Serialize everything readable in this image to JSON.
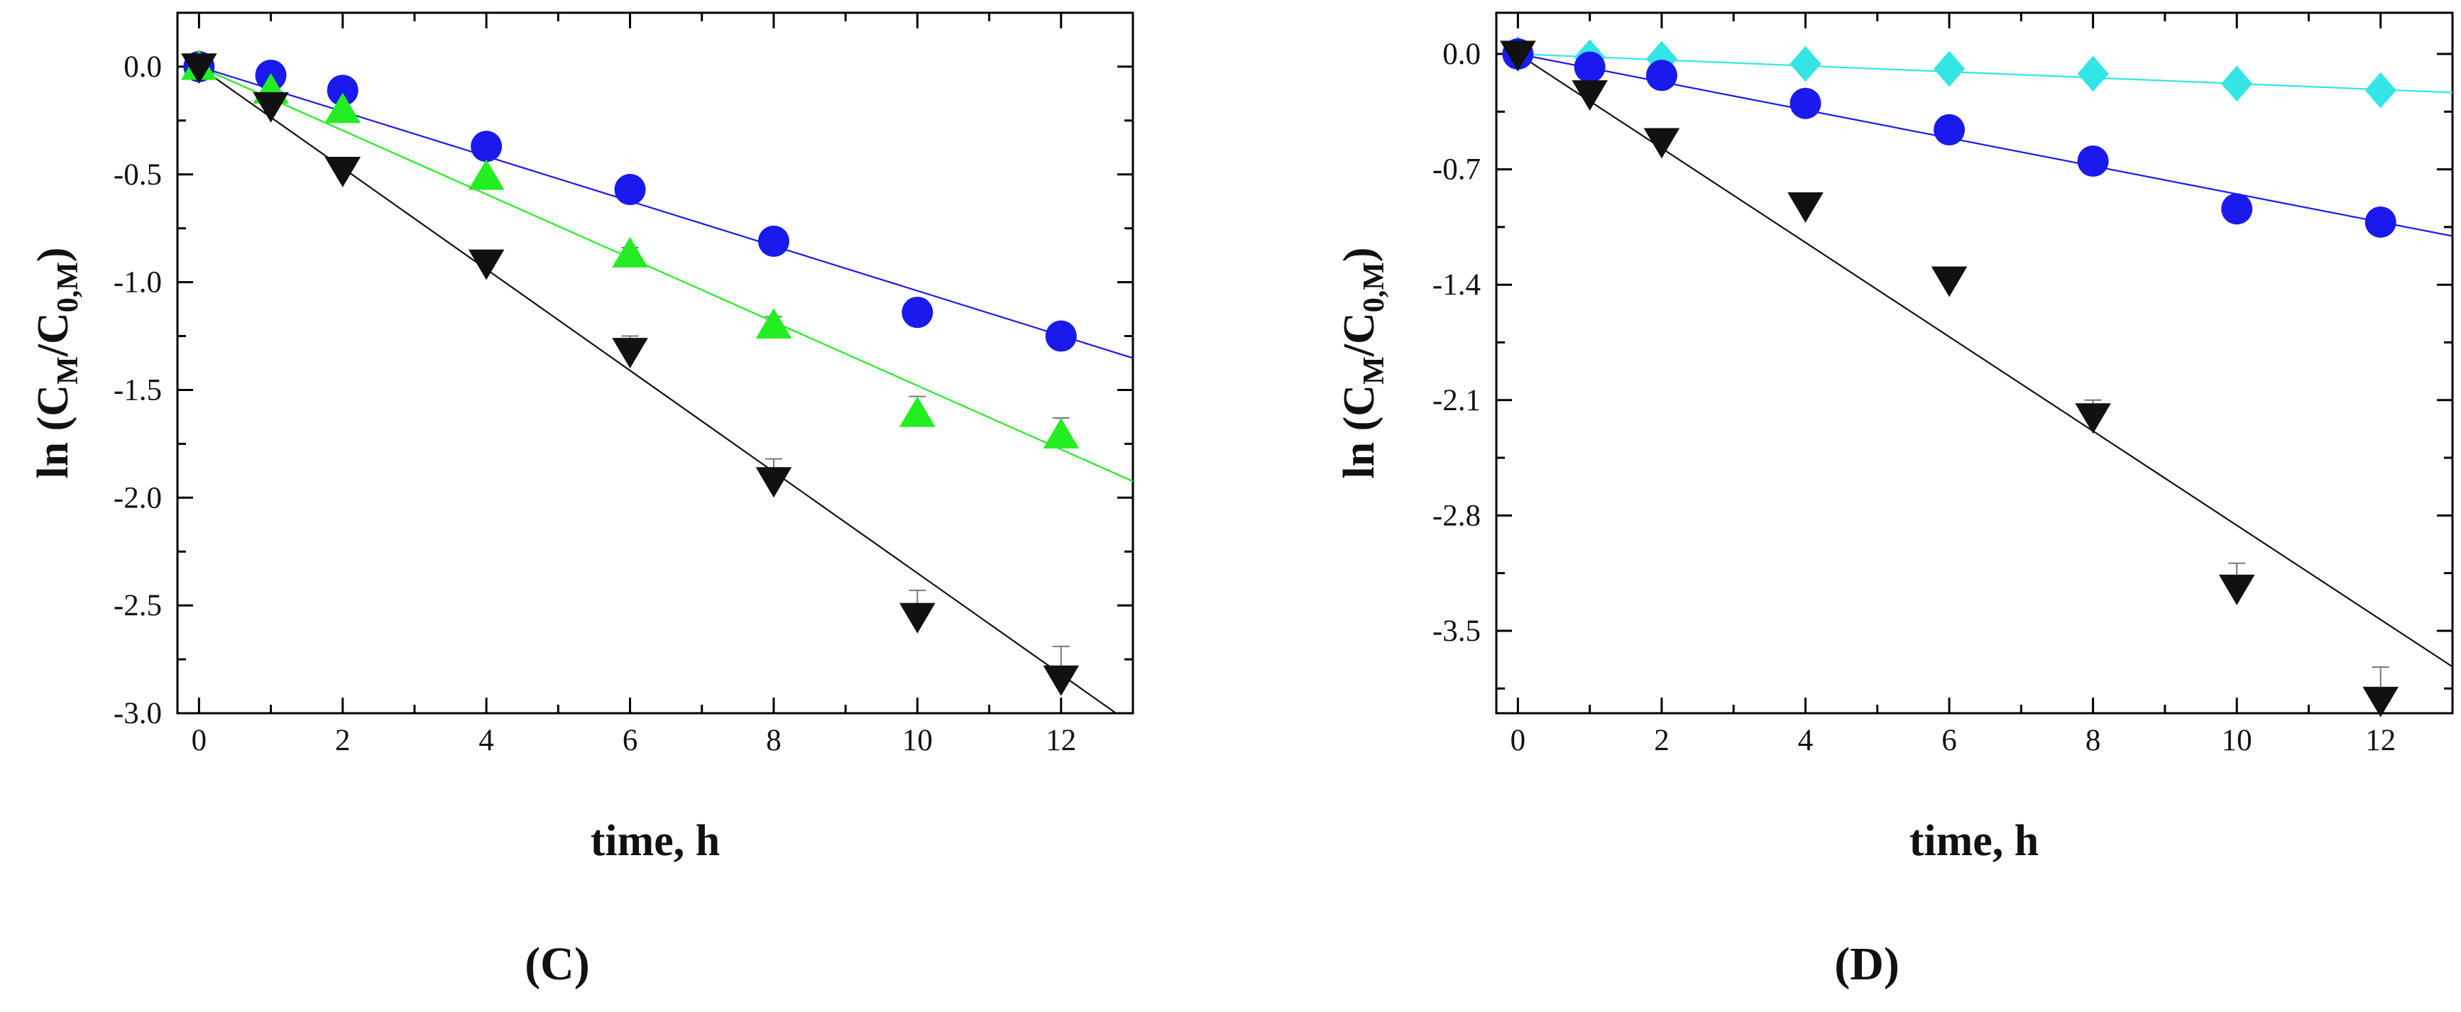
{
  "chart_data": [
    {
      "type": "scatter",
      "panel_label": "(C)",
      "xlabel": "time, h",
      "ylabel_main": "ln (C",
      "ylabel_sub1": "M",
      "ylabel_mid": "/C",
      "ylabel_sub2": "0,M",
      "ylabel_end": ")",
      "xlim": [
        -0.3,
        13
      ],
      "ylim": [
        -3.0,
        0.25
      ],
      "xticks": [
        0,
        2,
        4,
        6,
        8,
        10,
        12
      ],
      "xtick_labels": [
        "0",
        "2",
        "4",
        "6",
        "8",
        "10",
        "12"
      ],
      "yticks": [
        0.0,
        -0.5,
        -1.0,
        -1.5,
        -2.0,
        -2.5,
        -3.0
      ],
      "ytick_labels": [
        "0.0",
        "-0.5",
        "-1.0",
        "-1.5",
        "-2.0",
        "-2.5",
        "-3.0"
      ],
      "grid": false,
      "series": [
        {
          "name": "circles",
          "marker": "circle",
          "color": "#1a1aee",
          "x": [
            0,
            1,
            2,
            4,
            6,
            8,
            10,
            12
          ],
          "y": [
            0.0,
            -0.04,
            -0.11,
            -0.37,
            -0.57,
            -0.81,
            -1.14,
            -1.25
          ],
          "err": [
            0,
            0,
            0,
            0,
            0,
            0,
            0,
            0.03
          ],
          "fit_slope": -0.104
        },
        {
          "name": "triangles-up",
          "marker": "triangle-up",
          "color": "#22ee22",
          "x": [
            0,
            1,
            2,
            4,
            6,
            8,
            10,
            12
          ],
          "y": [
            0.0,
            -0.11,
            -0.2,
            -0.51,
            -0.87,
            -1.2,
            -1.61,
            -1.71
          ],
          "err": [
            0,
            0,
            0,
            0,
            0.03,
            0.04,
            0.08,
            0.08
          ],
          "fit_slope": -0.148
        },
        {
          "name": "triangles-down",
          "marker": "triangle-down",
          "color": "#111111",
          "x": [
            0,
            1,
            2,
            4,
            6,
            8,
            10,
            12
          ],
          "y": [
            0.0,
            -0.18,
            -0.48,
            -0.91,
            -1.32,
            -1.92,
            -2.55,
            -2.84
          ],
          "err": [
            0,
            0.02,
            0.04,
            0.05,
            0.07,
            0.1,
            0.12,
            0.15
          ],
          "fit_slope": -0.235
        }
      ]
    },
    {
      "type": "scatter",
      "panel_label": "(D)",
      "xlabel": "time, h",
      "ylabel_main": "ln (C",
      "ylabel_sub1": "M",
      "ylabel_mid": "/C",
      "ylabel_sub2": "0,M",
      "ylabel_end": ")",
      "xlim": [
        -0.3,
        13
      ],
      "ylim": [
        -4.0,
        0.25
      ],
      "xticks": [
        0,
        2,
        4,
        6,
        8,
        10,
        12
      ],
      "xtick_labels": [
        "0",
        "2",
        "4",
        "6",
        "8",
        "10",
        "12"
      ],
      "yticks": [
        0.0,
        -0.7,
        -1.4,
        -2.1,
        -2.8,
        -3.5
      ],
      "ytick_labels": [
        "0.0",
        "-0.7",
        "-1.4",
        "-2.1",
        "-2.8",
        "-3.5"
      ],
      "grid": false,
      "series": [
        {
          "name": "diamonds",
          "marker": "diamond",
          "color": "#33e5e5",
          "x": [
            0,
            1,
            2,
            4,
            6,
            8,
            10,
            12
          ],
          "y": [
            0.0,
            -0.02,
            -0.03,
            -0.06,
            -0.09,
            -0.12,
            -0.18,
            -0.22
          ],
          "err": [
            0,
            0,
            0,
            0,
            0,
            0,
            0,
            0
          ],
          "fit_slope": -0.018
        },
        {
          "name": "circles",
          "marker": "circle",
          "color": "#1a1aee",
          "x": [
            0,
            1,
            2,
            4,
            6,
            8,
            10,
            12
          ],
          "y": [
            0.0,
            -0.08,
            -0.13,
            -0.3,
            -0.46,
            -0.65,
            -0.94,
            -1.02
          ],
          "err": [
            0,
            0,
            0,
            0,
            0,
            0,
            0,
            0
          ],
          "fit_slope": -0.085
        },
        {
          "name": "triangles-down",
          "marker": "triangle-down",
          "color": "#111111",
          "x": [
            0,
            1,
            2,
            4,
            6,
            8,
            10,
            12
          ],
          "y": [
            0.0,
            -0.24,
            -0.53,
            -0.92,
            -1.37,
            -2.2,
            -3.24,
            -3.92
          ],
          "err": [
            0,
            0.03,
            0.05,
            0.05,
            0.06,
            0.1,
            0.15,
            0.2
          ],
          "fit_slope": -0.286
        }
      ]
    }
  ]
}
